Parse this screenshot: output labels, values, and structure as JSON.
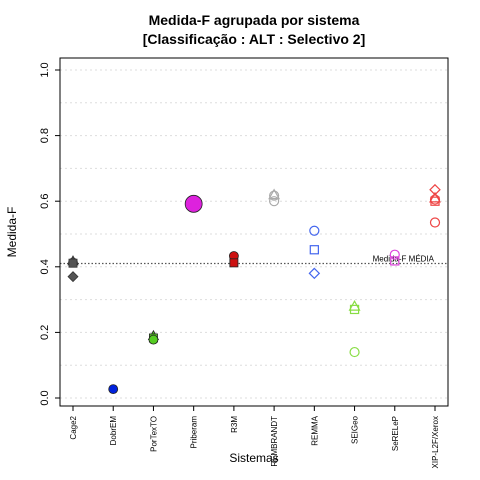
{
  "chart_data": {
    "type": "scatter",
    "title_line1": "Medida-F agrupada por sistema",
    "title_line2": "[Classificação : ALT : Selectivo 2]",
    "xlabel": "Sistemas",
    "ylabel": "Medida-F",
    "ylim": [
      0.0,
      1.0
    ],
    "yticks": [
      "0.0",
      "0.2",
      "0.4",
      "0.6",
      "0.8",
      "1.0"
    ],
    "grid": true,
    "categories": [
      "Cage2",
      "DobrEM",
      "PorTexTO",
      "Priberam",
      "R3M",
      "REMBRANDT",
      "REMMA",
      "SEIGeo",
      "SeRELeP",
      "XIP-L2F/Xerox"
    ],
    "reference_line": {
      "value": 0.41,
      "label": "Medida-F MÉDIA"
    },
    "points": [
      {
        "cat": 0,
        "y": 0.418,
        "shape": "triangle",
        "color": "#555555",
        "filled": true
      },
      {
        "cat": 0,
        "y": 0.413,
        "shape": "circle",
        "color": "#555555",
        "filled": true
      },
      {
        "cat": 0,
        "y": 0.411,
        "shape": "square",
        "color": "#555555",
        "filled": true
      },
      {
        "cat": 0,
        "y": 0.37,
        "shape": "diamond",
        "color": "#555555",
        "filled": true
      },
      {
        "cat": 1,
        "y": 0.027,
        "shape": "circle",
        "color": "#0022dd",
        "filled": true
      },
      {
        "cat": 2,
        "y": 0.19,
        "shape": "triangle",
        "color": "#55cc22",
        "filled": true
      },
      {
        "cat": 2,
        "y": 0.183,
        "shape": "square",
        "color": "#55cc22",
        "filled": true
      },
      {
        "cat": 2,
        "y": 0.178,
        "shape": "circle",
        "color": "#55cc22",
        "filled": true
      },
      {
        "cat": 3,
        "y": 0.592,
        "shape": "circle",
        "color": "#dd22dd",
        "filled": true,
        "big": true
      },
      {
        "cat": 4,
        "y": 0.433,
        "shape": "circle",
        "color": "#cc1111",
        "filled": true
      },
      {
        "cat": 4,
        "y": 0.412,
        "shape": "square",
        "color": "#cc1111",
        "filled": true
      },
      {
        "cat": 5,
        "y": 0.62,
        "shape": "triangle",
        "color": "#aaaaaa",
        "filled": false
      },
      {
        "cat": 5,
        "y": 0.617,
        "shape": "circle",
        "color": "#aaaaaa",
        "filled": false
      },
      {
        "cat": 5,
        "y": 0.6,
        "shape": "circle",
        "color": "#aaaaaa",
        "filled": false
      },
      {
        "cat": 6,
        "y": 0.51,
        "shape": "circle",
        "color": "#4466ee",
        "filled": false
      },
      {
        "cat": 6,
        "y": 0.452,
        "shape": "square",
        "color": "#4466ee",
        "filled": false
      },
      {
        "cat": 6,
        "y": 0.38,
        "shape": "diamond",
        "color": "#4466ee",
        "filled": false
      },
      {
        "cat": 7,
        "y": 0.28,
        "shape": "triangle",
        "color": "#88dd44",
        "filled": false
      },
      {
        "cat": 7,
        "y": 0.27,
        "shape": "square",
        "color": "#88dd44",
        "filled": false
      },
      {
        "cat": 7,
        "y": 0.14,
        "shape": "circle",
        "color": "#88dd44",
        "filled": false
      },
      {
        "cat": 8,
        "y": 0.437,
        "shape": "circle",
        "color": "#dd44dd",
        "filled": false
      },
      {
        "cat": 8,
        "y": 0.418,
        "shape": "square",
        "color": "#dd44dd",
        "filled": false
      },
      {
        "cat": 9,
        "y": 0.635,
        "shape": "diamond",
        "color": "#ee4444",
        "filled": false
      },
      {
        "cat": 9,
        "y": 0.61,
        "shape": "triangle",
        "color": "#ee4444",
        "filled": false
      },
      {
        "cat": 9,
        "y": 0.605,
        "shape": "circle",
        "color": "#ee4444",
        "filled": false
      },
      {
        "cat": 9,
        "y": 0.6,
        "shape": "square",
        "color": "#ee4444",
        "filled": false
      },
      {
        "cat": 9,
        "y": 0.535,
        "shape": "circle",
        "color": "#ee4444",
        "filled": false
      }
    ]
  }
}
